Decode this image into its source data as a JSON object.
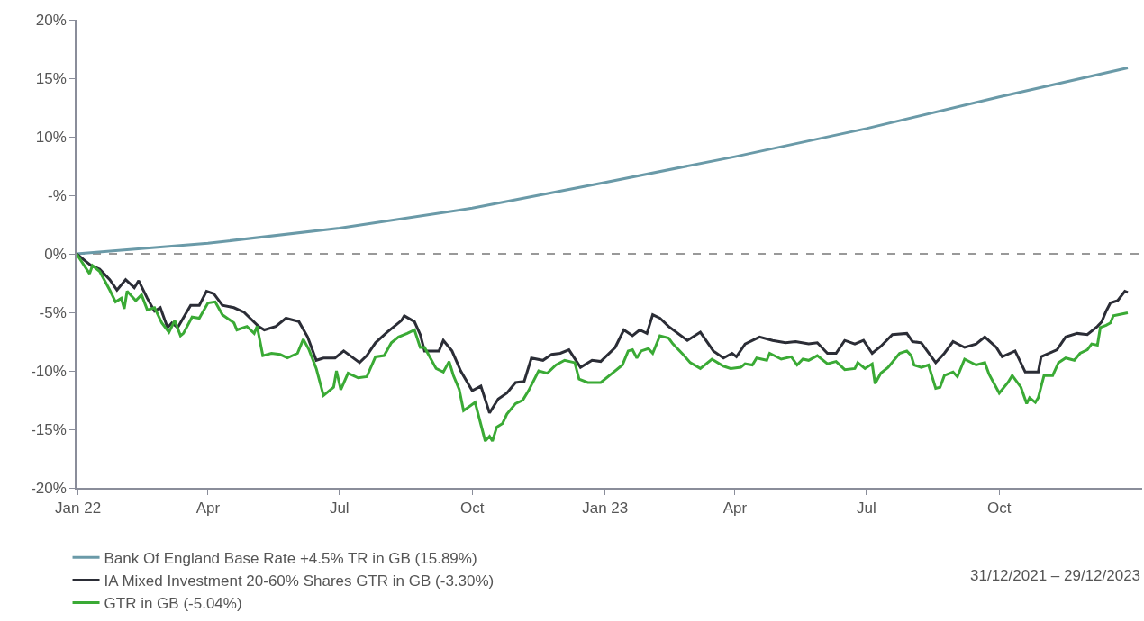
{
  "chart_data": {
    "type": "line",
    "xlim": [
      "2021-12-31",
      "2024-01-08"
    ],
    "xticks": [
      {
        "value": "2022-01-01",
        "label": "Jan 22"
      },
      {
        "value": "2022-04-01",
        "label": "Apr"
      },
      {
        "value": "2022-07-01",
        "label": "Jul"
      },
      {
        "value": "2022-10-01",
        "label": "Oct"
      },
      {
        "value": "2023-01-01",
        "label": "Jan 23"
      },
      {
        "value": "2023-04-01",
        "label": "Apr"
      },
      {
        "value": "2023-07-01",
        "label": "Jul"
      },
      {
        "value": "2023-10-01",
        "label": "Oct"
      }
    ],
    "ylim": [
      -20,
      20
    ],
    "yticks": [
      {
        "value": 20,
        "label": "20%"
      },
      {
        "value": 15,
        "label": "15%"
      },
      {
        "value": 10,
        "label": "10%"
      },
      {
        "value": 5,
        "label": "-%"
      },
      {
        "value": 0,
        "label": "0%"
      },
      {
        "value": -5,
        "label": "-5%"
      },
      {
        "value": -10,
        "label": "-10%"
      },
      {
        "value": -15,
        "label": "-15%"
      },
      {
        "value": -20,
        "label": "-20%"
      }
    ],
    "grid": false,
    "legend": "bottom left",
    "marker": "none",
    "line_style": "solid",
    "ref_lines": [
      {
        "axis": "y",
        "value": 0,
        "color": "#999999",
        "line_style": "dashed"
      }
    ],
    "annotations": [
      "31/12/2021 – 29/12/2023"
    ],
    "series": [
      {
        "name": "Bank Of England Base Rate +4.5% TR in GB (15.89%)",
        "color": "#6a9aa8",
        "x": [
          "2021-12-31",
          "2022-04-01",
          "2022-07-01",
          "2022-10-01",
          "2023-01-01",
          "2023-04-01",
          "2023-07-01",
          "2023-10-01",
          "2023-12-29"
        ],
        "values": [
          0,
          0.9,
          2.2,
          3.9,
          6.1,
          8.3,
          10.7,
          13.4,
          15.89
        ]
      },
      {
        "name": "IA Mixed Investment 20-60% Shares GTR in GB (-3.30%)",
        "color": "#2b2d36",
        "x": [
          "2021-12-31",
          "2022-01-07",
          "2022-01-10",
          "2022-01-16",
          "2022-01-23",
          "2022-01-28",
          "2022-02-03",
          "2022-02-09",
          "2022-02-12",
          "2022-02-18",
          "2022-02-23",
          "2022-02-27",
          "2022-03-04",
          "2022-03-07",
          "2022-03-11",
          "2022-03-20",
          "2022-03-26",
          "2022-03-31",
          "2022-04-05",
          "2022-04-11",
          "2022-04-19",
          "2022-04-26",
          "2022-05-06",
          "2022-05-10",
          "2022-05-18",
          "2022-05-25",
          "2022-06-03",
          "2022-06-09",
          "2022-06-15",
          "2022-06-20",
          "2022-06-28",
          "2022-07-04",
          "2022-07-15",
          "2022-07-20",
          "2022-07-26",
          "2022-08-03",
          "2022-08-08",
          "2022-08-13",
          "2022-08-15",
          "2022-08-22",
          "2022-08-26",
          "2022-08-29",
          "2022-09-08",
          "2022-09-11",
          "2022-09-17",
          "2022-09-23",
          "2022-10-01",
          "2022-10-07",
          "2022-10-13",
          "2022-10-19",
          "2022-10-25",
          "2022-10-31",
          "2022-11-06",
          "2022-11-11",
          "2022-11-19",
          "2022-11-25",
          "2022-12-01",
          "2022-12-07",
          "2022-12-15",
          "2022-12-23",
          "2022-12-29",
          "2023-01-08",
          "2023-01-14",
          "2023-01-20",
          "2023-01-25",
          "2023-01-30",
          "2023-02-03",
          "2023-02-08",
          "2023-02-14",
          "2023-02-27",
          "2023-03-08",
          "2023-03-17",
          "2023-03-24",
          "2023-03-30",
          "2023-04-02",
          "2023-04-08",
          "2023-04-18",
          "2023-04-27",
          "2023-05-06",
          "2023-05-13",
          "2023-05-22",
          "2023-05-28",
          "2023-06-04",
          "2023-06-10",
          "2023-06-16",
          "2023-06-23",
          "2023-06-29",
          "2023-07-05",
          "2023-07-11",
          "2023-07-19",
          "2023-07-29",
          "2023-08-02",
          "2023-08-08",
          "2023-08-18",
          "2023-08-24",
          "2023-08-30",
          "2023-09-07",
          "2023-09-15",
          "2023-09-21",
          "2023-09-29",
          "2023-10-03",
          "2023-10-12",
          "2023-10-19",
          "2023-10-28",
          "2023-10-30",
          "2023-11-10",
          "2023-11-16",
          "2023-11-24",
          "2023-12-01",
          "2023-12-08",
          "2023-12-11",
          "2023-12-14",
          "2023-12-17",
          "2023-12-22",
          "2023-12-27",
          "2023-12-29"
        ],
        "values": [
          0,
          -0.7,
          -1.0,
          -1.3,
          -2.2,
          -3.1,
          -2.2,
          -2.9,
          -2.3,
          -3.8,
          -4.9,
          -4.6,
          -6.3,
          -5.9,
          -6.3,
          -4.4,
          -4.4,
          -3.2,
          -3.4,
          -4.4,
          -4.6,
          -5.0,
          -6.2,
          -6.5,
          -6.2,
          -5.5,
          -5.8,
          -7.1,
          -9.1,
          -8.9,
          -8.9,
          -8.3,
          -9.3,
          -8.7,
          -7.6,
          -6.7,
          -6.2,
          -5.7,
          -5.3,
          -5.8,
          -6.9,
          -8.3,
          -8.3,
          -7.4,
          -8.3,
          -10.0,
          -11.7,
          -11.3,
          -13.6,
          -12.4,
          -11.9,
          -11.0,
          -10.9,
          -8.9,
          -9.1,
          -8.6,
          -8.5,
          -8.2,
          -9.7,
          -9.1,
          -9.2,
          -8.0,
          -6.5,
          -7.0,
          -6.5,
          -6.8,
          -5.2,
          -5.5,
          -6.2,
          -7.4,
          -6.7,
          -8.3,
          -8.9,
          -8.5,
          -8.8,
          -7.7,
          -7.1,
          -7.4,
          -7.6,
          -7.5,
          -7.7,
          -7.6,
          -8.5,
          -8.5,
          -7.4,
          -7.7,
          -7.4,
          -8.5,
          -7.9,
          -6.9,
          -6.8,
          -7.5,
          -7.6,
          -9.3,
          -8.5,
          -7.5,
          -8.0,
          -7.7,
          -7.1,
          -8.0,
          -8.8,
          -8.3,
          -10.1,
          -10.1,
          -8.8,
          -8.2,
          -7.1,
          -6.8,
          -6.9,
          -6.2,
          -5.8,
          -4.9,
          -4.2,
          -4.0,
          -3.2,
          -3.3
        ]
      },
      {
        "name": "GTR in GB (-5.04%)",
        "color": "#3aaa35",
        "x": [
          "2021-12-31",
          "2022-01-09",
          "2022-01-11",
          "2022-01-16",
          "2022-01-23",
          "2022-01-27",
          "2022-01-31",
          "2022-02-02",
          "2022-02-04",
          "2022-02-10",
          "2022-02-14",
          "2022-02-18",
          "2022-02-23",
          "2022-02-28",
          "2022-03-05",
          "2022-03-09",
          "2022-03-13",
          "2022-03-15",
          "2022-03-21",
          "2022-03-26",
          "2022-04-01",
          "2022-04-06",
          "2022-04-11",
          "2022-04-19",
          "2022-04-21",
          "2022-04-28",
          "2022-05-03",
          "2022-05-05",
          "2022-05-09",
          "2022-05-15",
          "2022-05-21",
          "2022-05-26",
          "2022-06-02",
          "2022-06-06",
          "2022-06-10",
          "2022-06-15",
          "2022-06-20",
          "2022-06-27",
          "2022-06-29",
          "2022-07-02",
          "2022-07-07",
          "2022-07-14",
          "2022-07-20",
          "2022-07-26",
          "2022-08-01",
          "2022-08-06",
          "2022-08-11",
          "2022-08-17",
          "2022-08-22",
          "2022-08-26",
          "2022-08-29",
          "2022-09-06",
          "2022-09-11",
          "2022-09-15",
          "2022-09-18",
          "2022-09-22",
          "2022-09-25",
          "2022-10-03",
          "2022-10-10",
          "2022-10-13",
          "2022-10-15",
          "2022-10-18",
          "2022-10-22",
          "2022-10-25",
          "2022-10-31",
          "2022-11-05",
          "2022-11-09",
          "2022-11-16",
          "2022-11-22",
          "2022-11-28",
          "2022-12-04",
          "2022-12-11",
          "2022-12-14",
          "2022-12-20",
          "2022-12-29",
          "2023-01-06",
          "2023-01-13",
          "2023-01-17",
          "2023-01-20",
          "2023-01-23",
          "2023-01-26",
          "2023-01-31",
          "2023-02-03",
          "2023-02-08",
          "2023-02-14",
          "2023-02-17",
          "2023-02-24",
          "2023-03-01",
          "2023-03-08",
          "2023-03-16",
          "2023-03-24",
          "2023-03-29",
          "2023-04-05",
          "2023-04-08",
          "2023-04-13",
          "2023-04-16",
          "2023-04-23",
          "2023-04-25",
          "2023-05-03",
          "2023-05-10",
          "2023-05-14",
          "2023-05-18",
          "2023-05-22",
          "2023-05-28",
          "2023-06-04",
          "2023-06-10",
          "2023-06-16",
          "2023-06-23",
          "2023-06-25",
          "2023-06-30",
          "2023-07-05",
          "2023-07-07",
          "2023-07-11",
          "2023-07-16",
          "2023-07-24",
          "2023-07-29",
          "2023-08-01",
          "2023-08-03",
          "2023-08-08",
          "2023-08-13",
          "2023-08-18",
          "2023-08-21",
          "2023-08-24",
          "2023-08-30",
          "2023-09-02",
          "2023-09-07",
          "2023-09-15",
          "2023-09-21",
          "2023-09-24",
          "2023-10-01",
          "2023-10-07",
          "2023-10-10",
          "2023-10-16",
          "2023-10-20",
          "2023-10-22",
          "2023-10-26",
          "2023-10-28",
          "2023-11-01",
          "2023-11-07",
          "2023-11-11",
          "2023-11-16",
          "2023-11-22",
          "2023-11-26",
          "2023-12-01",
          "2023-12-04",
          "2023-12-08",
          "2023-12-10",
          "2023-12-14",
          "2023-12-17",
          "2023-12-19",
          "2023-12-29"
        ],
        "values": [
          0,
          -1.7,
          -1.0,
          -1.5,
          -3.1,
          -4.1,
          -3.8,
          -4.7,
          -3.2,
          -4.0,
          -3.5,
          -4.8,
          -4.6,
          -5.9,
          -6.7,
          -5.7,
          -7.0,
          -6.8,
          -5.4,
          -5.5,
          -4.2,
          -4.1,
          -5.2,
          -5.9,
          -6.5,
          -6.2,
          -6.8,
          -6.2,
          -8.7,
          -8.5,
          -8.6,
          -8.9,
          -8.5,
          -7.3,
          -8.2,
          -9.8,
          -12.1,
          -11.4,
          -10.0,
          -11.6,
          -10.2,
          -10.6,
          -10.5,
          -8.8,
          -8.7,
          -7.6,
          -7.1,
          -6.8,
          -6.5,
          -8.0,
          -8.0,
          -9.8,
          -10.1,
          -9.2,
          -10.4,
          -11.6,
          -13.4,
          -12.7,
          -16.0,
          -15.6,
          -16.0,
          -14.8,
          -14.5,
          -13.7,
          -12.8,
          -12.5,
          -11.7,
          -10.0,
          -10.2,
          -9.5,
          -9.1,
          -9.3,
          -10.7,
          -11.0,
          -11.0,
          -10.2,
          -9.5,
          -8.3,
          -8.2,
          -8.9,
          -8.3,
          -8.1,
          -8.5,
          -7.0,
          -7.2,
          -7.7,
          -8.6,
          -9.3,
          -9.8,
          -9.0,
          -9.6,
          -9.8,
          -9.7,
          -9.4,
          -9.5,
          -8.9,
          -9.1,
          -8.5,
          -9.0,
          -8.8,
          -9.5,
          -9.0,
          -9.1,
          -8.7,
          -9.4,
          -9.2,
          -9.9,
          -9.8,
          -9.3,
          -9.8,
          -9.4,
          -11.1,
          -10.2,
          -9.7,
          -8.5,
          -8.3,
          -8.7,
          -9.5,
          -9.7,
          -9.5,
          -11.5,
          -11.4,
          -10.4,
          -10.1,
          -10.5,
          -9.0,
          -9.5,
          -9.3,
          -10.3,
          -11.9,
          -11.0,
          -10.4,
          -11.4,
          -12.8,
          -12.3,
          -12.7,
          -12.3,
          -10.4,
          -10.4,
          -9.3,
          -8.9,
          -9.1,
          -8.5,
          -8.2,
          -7.7,
          -7.8,
          -6.3,
          -6.1,
          -5.9,
          -5.3,
          -5.04
        ]
      }
    ]
  }
}
